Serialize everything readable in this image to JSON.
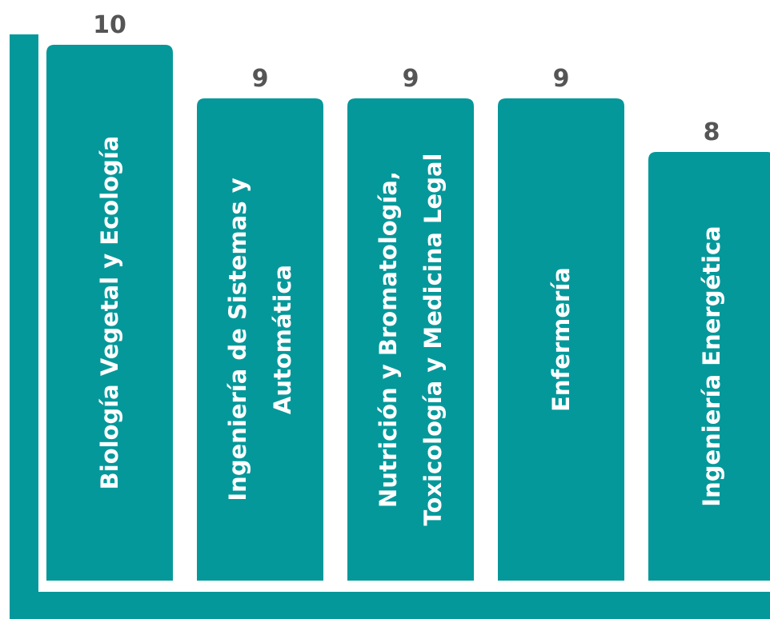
{
  "chart_data": {
    "type": "bar",
    "orientation": "vertical",
    "categories": [
      [
        "Biología Vegetal y Ecología"
      ],
      [
        "Ingeniería de Sistemas y",
        "Automática"
      ],
      [
        "Nutrición y Bromatología,",
        "Toxicología y Medicina Legal"
      ],
      [
        "Enfermería"
      ],
      [
        "Ingeniería Energética"
      ]
    ],
    "values": [
      10,
      9,
      9,
      9,
      8
    ],
    "ylim": [
      0,
      10
    ],
    "grid": false,
    "legend": "none",
    "category_label_placement": "inside-bar-rotated",
    "colors": {
      "bar": "#05989a",
      "axis": "#05989a",
      "value_label": "#555555",
      "category_label": "#ffffff"
    }
  }
}
